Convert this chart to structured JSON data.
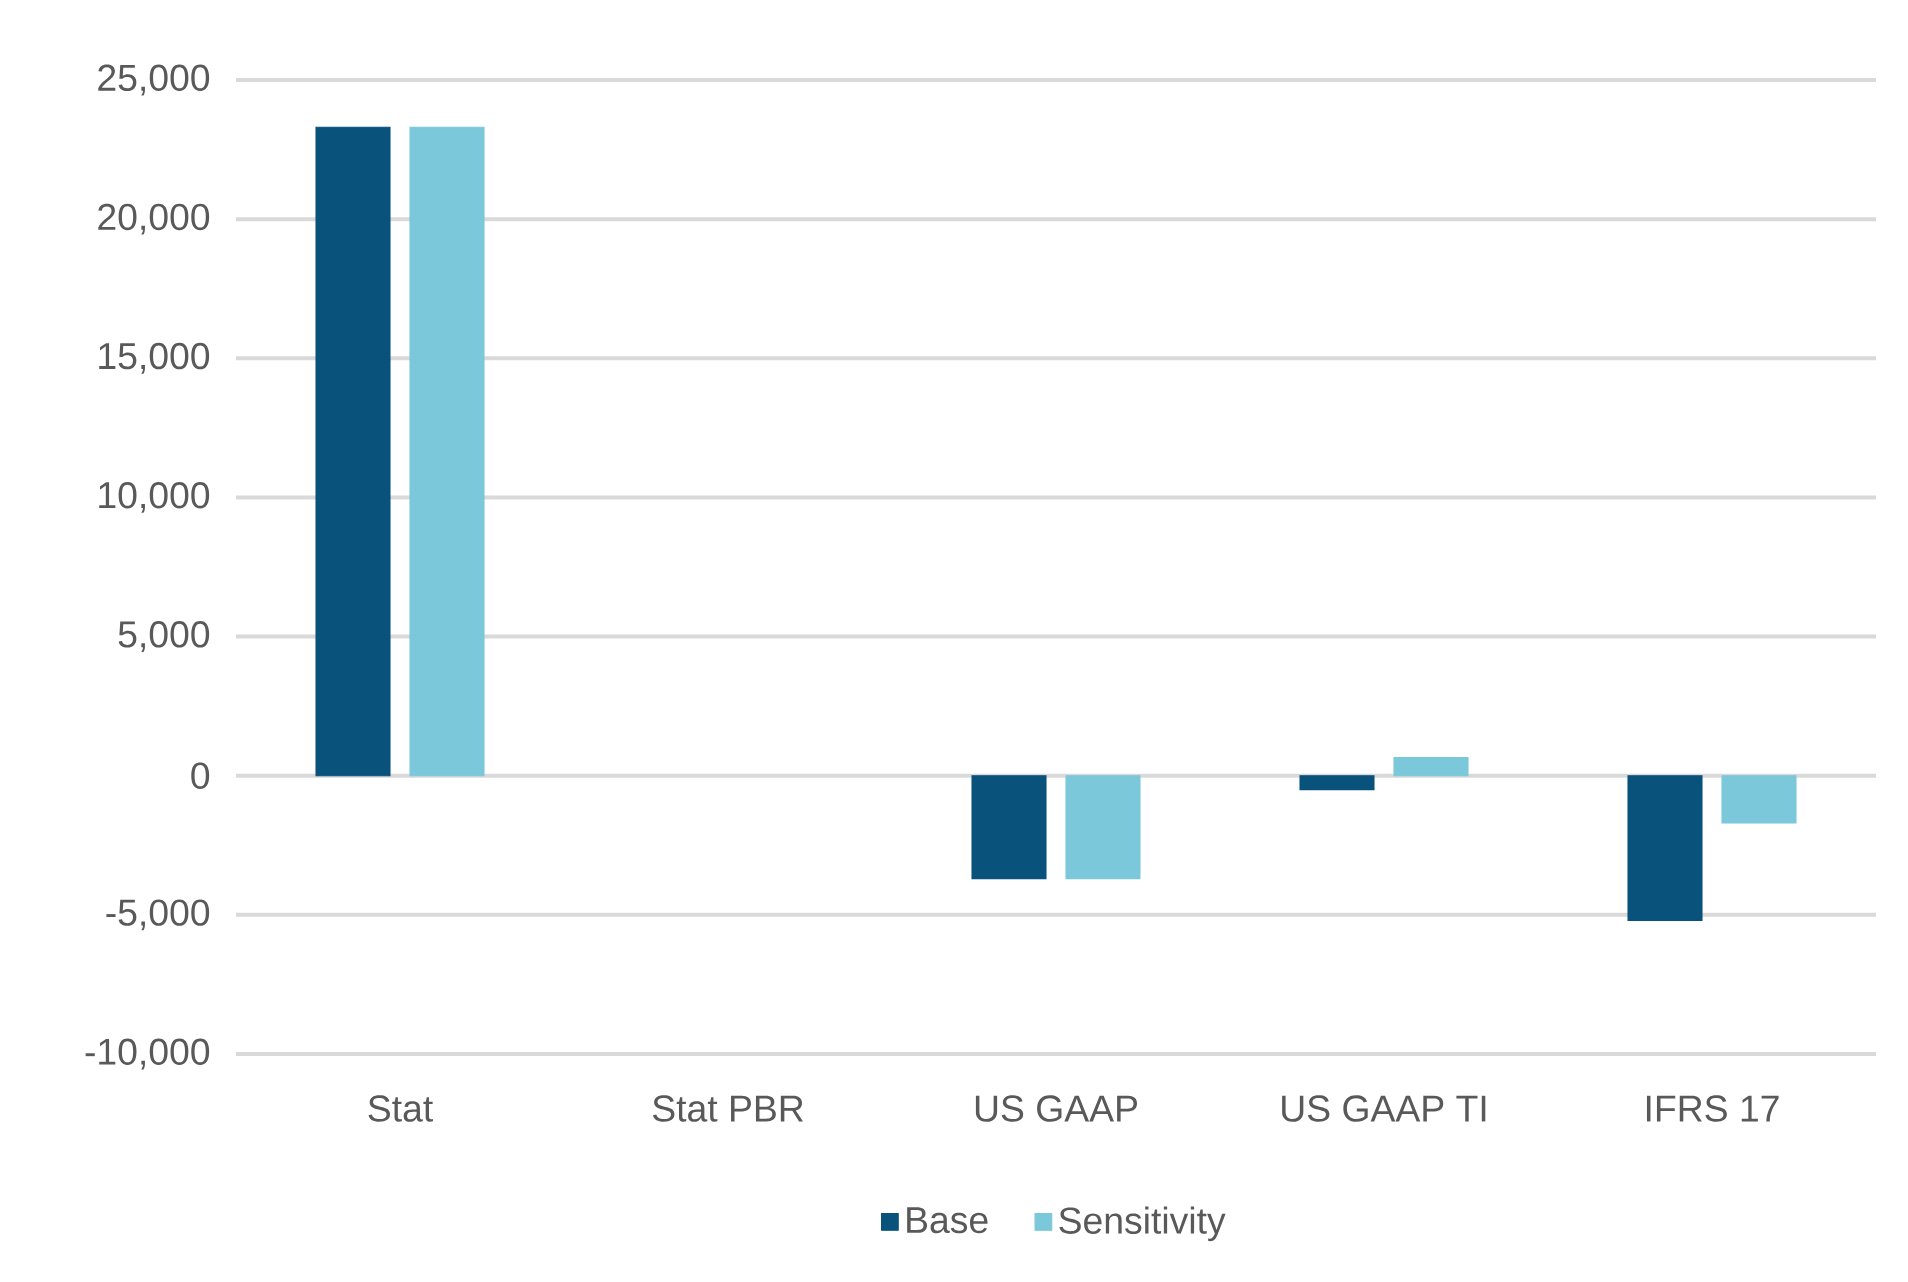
{
  "chart_data": {
    "type": "bar",
    "categories": [
      "Stat",
      "Stat PBR",
      "US GAAP",
      "US GAAP TI",
      "IFRS 17"
    ],
    "series": [
      {
        "name": "Base",
        "color": "#08527c",
        "values": [
          23300,
          null,
          -3700,
          -500,
          -5200
        ]
      },
      {
        "name": "Sensitivity",
        "color": "#7ac8da",
        "values": [
          23300,
          null,
          -3700,
          650,
          -1700
        ]
      }
    ],
    "ylim": [
      -10000,
      25000
    ],
    "yticks": [
      {
        "value": -10000,
        "label": "-10,000"
      },
      {
        "value": -5000,
        "label": "-5,000"
      },
      0,
      {
        "value": 5000,
        "label": "5,000"
      },
      {
        "value": 10000,
        "label": "10,000"
      },
      {
        "value": 15000,
        "label": "15,000"
      },
      {
        "value": 20000,
        "label": "20,000"
      },
      {
        "value": 25000,
        "label": "25,000"
      }
    ],
    "grid": "y",
    "legend": "bottom"
  }
}
